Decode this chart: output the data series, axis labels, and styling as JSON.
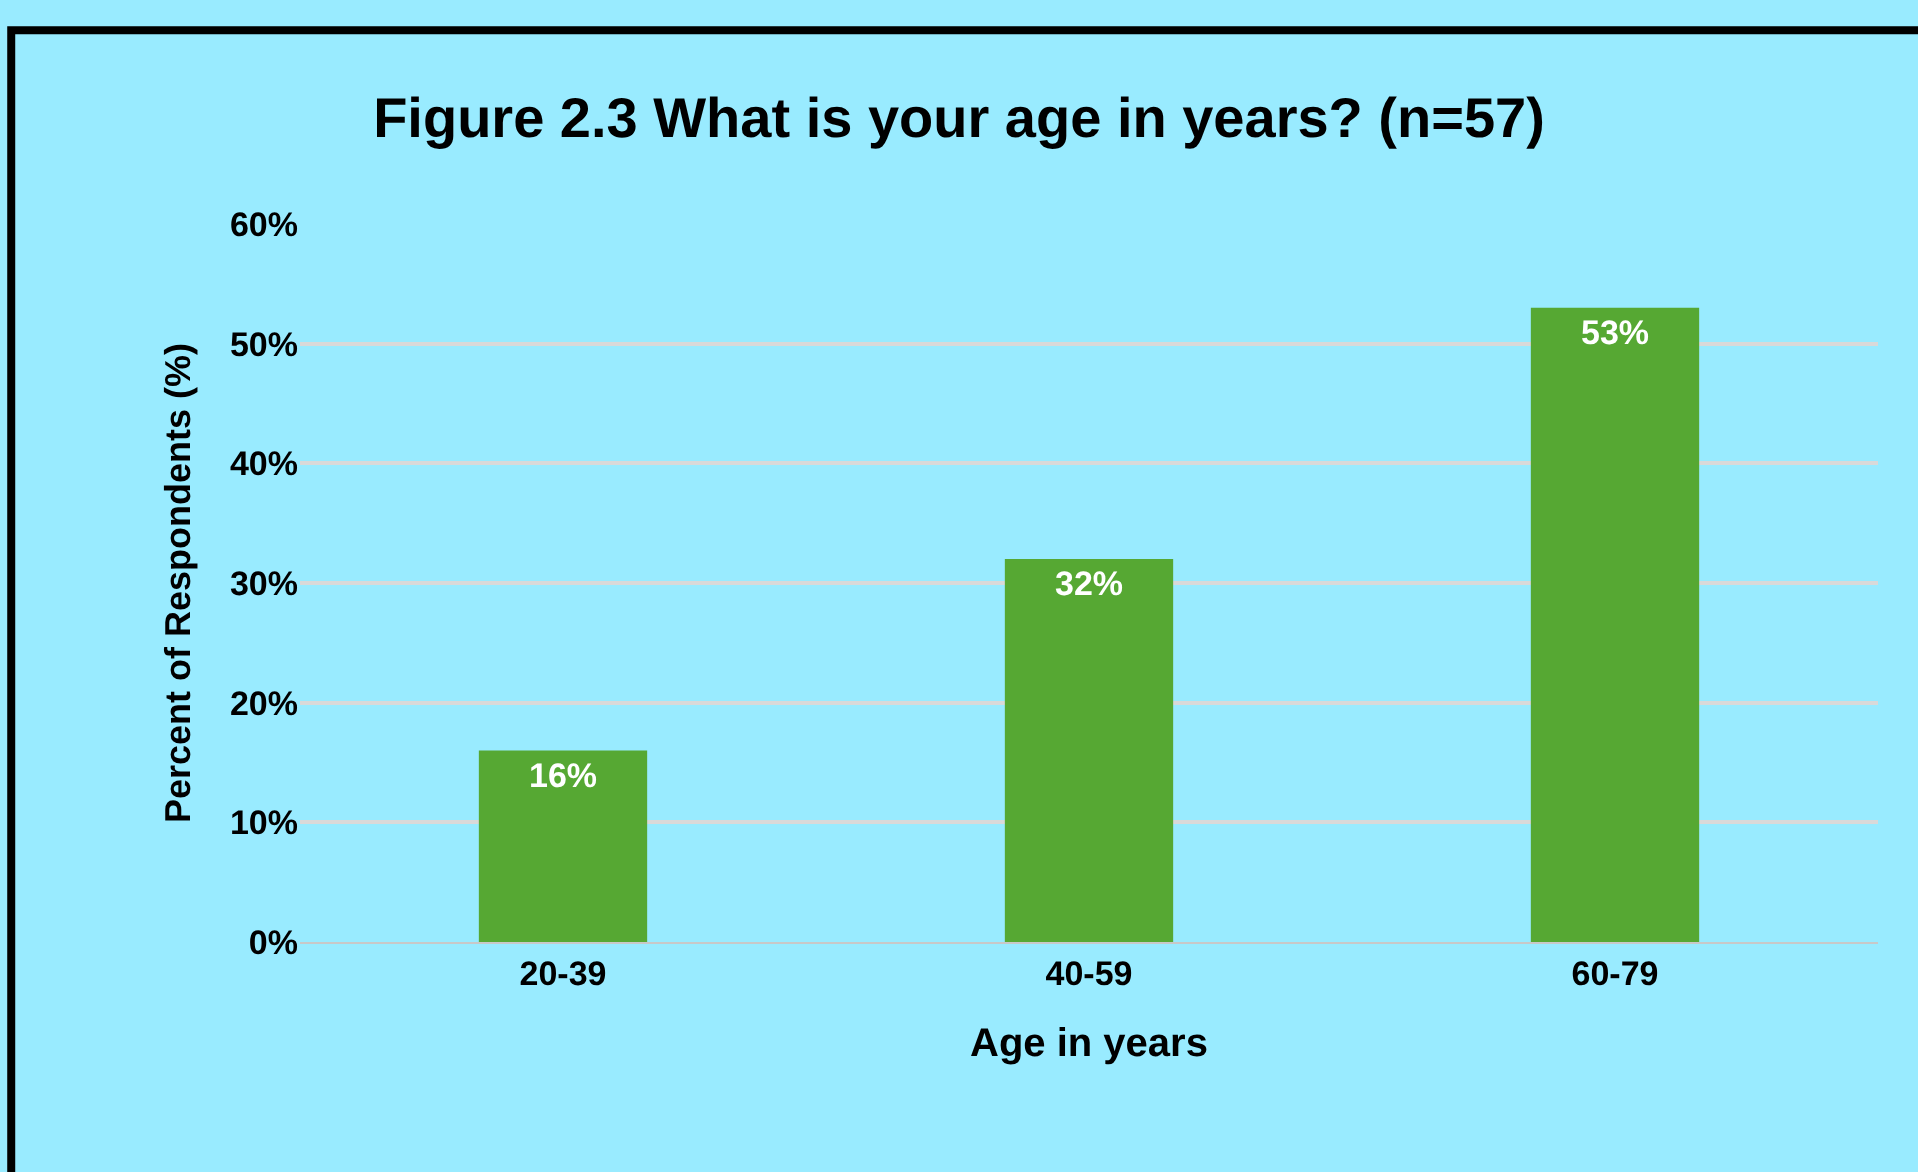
{
  "chart_data": {
    "type": "bar",
    "title": "Figure 2.3 What is your age in years? (n=57)",
    "xlabel": "Age in years",
    "ylabel": "Percent of Respondents (%)",
    "categories": [
      "20-39",
      "40-59",
      "60-79"
    ],
    "values": [
      16,
      32,
      53
    ],
    "color": "#56a833",
    "value_labels": [
      "16%",
      "32%",
      "53%"
    ],
    "ylim": [
      0,
      60
    ],
    "yticks": [
      {
        "value": 0,
        "label": "0%"
      },
      {
        "value": 10,
        "label": "10%"
      },
      {
        "value": 20,
        "label": "20%"
      },
      {
        "value": 30,
        "label": "30%"
      },
      {
        "value": 40,
        "label": "40%"
      },
      {
        "value": 50,
        "label": "50%"
      },
      {
        "value": 60,
        "label": "60%"
      }
    ],
    "grid": "y"
  }
}
